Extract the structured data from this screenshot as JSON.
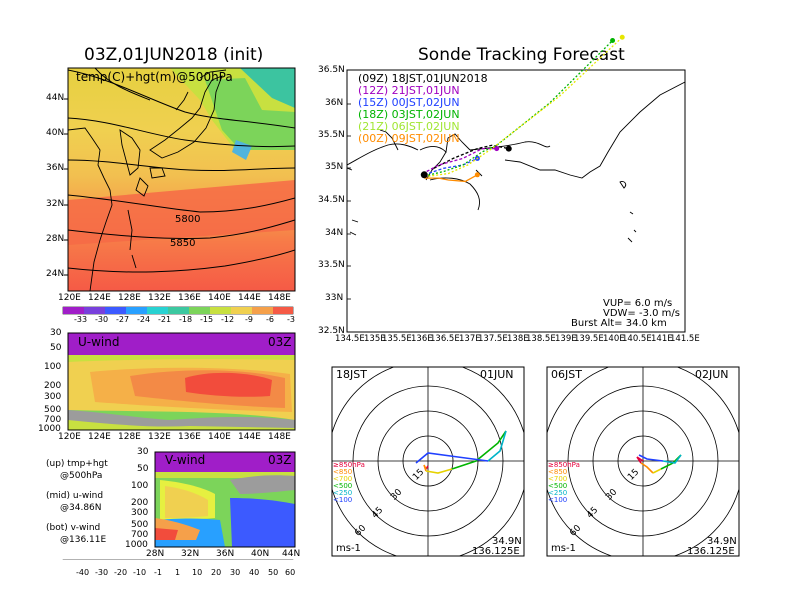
{
  "left_map": {
    "title": "03Z,01JUN2018 (init)",
    "label": "temp(C)+hgt(m)@500hPa",
    "contour_labels": [
      "5800",
      "5850"
    ],
    "lat_ticks": [
      "44N",
      "40N",
      "36N",
      "32N",
      "28N",
      "24N"
    ],
    "lon_ticks": [
      "120E",
      "124E",
      "128E",
      "132E",
      "136E",
      "140E",
      "144E",
      "148E"
    ],
    "colorbar_labels": [
      "-33",
      "-30",
      "-27",
      "-24",
      "-21",
      "-18",
      "-15",
      "-12",
      "-9",
      "-6",
      "-3"
    ]
  },
  "u_wind": {
    "label": "U-wind",
    "time": "03Z",
    "y_ticks": [
      "30",
      "50",
      "100",
      "200",
      "300",
      "500",
      "700",
      "1000"
    ],
    "x_ticks": [
      "120E",
      "124E",
      "128E",
      "132E",
      "136E",
      "140E",
      "144E",
      "148E"
    ]
  },
  "v_wind": {
    "label": "V-wind",
    "time": "03Z",
    "y_ticks": [
      "30",
      "50",
      "100",
      "200",
      "300",
      "500",
      "700",
      "1000"
    ],
    "x_ticks": [
      "28N",
      "32N",
      "36N",
      "40N",
      "44N"
    ]
  },
  "legend_notes": [
    [
      "(up) tmp+hgt",
      "@500hPa"
    ],
    [
      "(mid) u-wind",
      "@34.86N"
    ],
    [
      "(bot) v-wind",
      "@136.11E"
    ]
  ],
  "wind_colorbar_labels": [
    "-40",
    "-30",
    "-20",
    "-10",
    "-1",
    "1",
    "10",
    "20",
    "30",
    "40",
    "50",
    "60"
  ],
  "forecast": {
    "title": "Sonde Tracking Forecast",
    "lat_ticks": [
      "36.5N",
      "36N",
      "35.5N",
      "35N",
      "34.5N",
      "34N",
      "33.5N",
      "33N",
      "32.5N"
    ],
    "lon_ticks": [
      "134.5E",
      "135E",
      "135.5E",
      "136E",
      "136.5E",
      "137E",
      "137.5E",
      "138E",
      "138.5E",
      "139E",
      "139.5E",
      "140E",
      "140.5E",
      "141E",
      "141.5E"
    ],
    "legend": [
      {
        "text": "(09Z)  18JST,01JUN2018",
        "color": "#000000"
      },
      {
        "text": "(12Z)  21JST,01JUN",
        "color": "#a000c0"
      },
      {
        "text": "(15Z)  00JST,02JUN",
        "color": "#2040ff"
      },
      {
        "text": "(18Z)  03JST,02JUN",
        "color": "#00b400"
      },
      {
        "text": "(21Z)  06JST,02JUN",
        "color": "#a0e632"
      },
      {
        "text": "(00Z)  09JST,02JUN",
        "color": "#ff8c00"
      }
    ],
    "vup": "VUP=  6.0 m/s",
    "vdw": "VDW= -3.0 m/s",
    "burst": "Burst Alt= 34.0 km"
  },
  "hodographs": [
    {
      "time": "18JST",
      "date": "01JUN",
      "lat": "34.9N",
      "lon": "136.125E",
      "unit": "ms-1",
      "rings": [
        "15",
        "30",
        "45",
        "60"
      ],
      "levels": [
        "≥850hPa",
        "<850",
        "<700",
        "<500",
        "<250",
        "<100"
      ]
    },
    {
      "time": "06JST",
      "date": "02JUN",
      "lat": "34.9N",
      "lon": "136.125E",
      "unit": "ms-1",
      "rings": [
        "15",
        "30",
        "45",
        "60"
      ],
      "levels": [
        "≥850hPa",
        "<850",
        "<700",
        "<500",
        "<250",
        "<100"
      ]
    }
  ],
  "level_colors": [
    "#e6003c",
    "#ff8c00",
    "#e6d200",
    "#00b400",
    "#00b4c8",
    "#2040ff"
  ],
  "chart_data": [
    {
      "type": "heatmap",
      "title": "03Z,01JUN2018 (init)",
      "variable": "temp(C)+hgt(m)@500hPa",
      "xlim": [
        120,
        150
      ],
      "ylim": [
        22,
        48
      ],
      "color_levels": [
        -33,
        -30,
        -27,
        -24,
        -21,
        -18,
        -15,
        -12,
        -9,
        -6,
        -3
      ],
      "contours": [
        {
          "label": "5800",
          "lat_at_136E": 31.5
        },
        {
          "label": "5850",
          "lat_at_136E": 28.5
        }
      ]
    },
    {
      "type": "line",
      "title": "Sonde Tracking Forecast",
      "xlim": [
        134.5,
        141.5
      ],
      "ylim": [
        32.5,
        36.5
      ],
      "series": [
        {
          "name": "(09Z)  18JST,01JUN2018",
          "points": [
            [
              136.3,
              35.0
            ],
            [
              136.7,
              35.15
            ],
            [
              137.2,
              35.3
            ],
            [
              137.5,
              35.35
            ],
            [
              137.85,
              35.3
            ]
          ]
        },
        {
          "name": "(12Z)  21JST,01JUN",
          "points": [
            [
              136.15,
              34.95
            ],
            [
              136.4,
              35.05
            ],
            [
              136.9,
              35.15
            ],
            [
              137.3,
              35.3
            ],
            [
              137.6,
              35.3
            ]
          ]
        },
        {
          "name": "(15Z)  00JST,02JUN",
          "points": [
            [
              136.1,
              34.9
            ],
            [
              136.5,
              35.0
            ],
            [
              136.9,
              35.05
            ],
            [
              137.2,
              35.15
            ]
          ]
        },
        {
          "name": "(18Z)  03JST,02JUN",
          "points": [
            [
              136.1,
              34.88
            ],
            [
              136.5,
              34.95
            ],
            [
              136.9,
              35.05
            ],
            [
              137.3,
              35.25
            ],
            [
              137.6,
              35.35
            ],
            [
              138.7,
              36.0
            ],
            [
              140.0,
              36.95
            ]
          ]
        },
        {
          "name": "(21Z)  06JST,02JUN",
          "points": [
            [
              136.1,
              34.87
            ],
            [
              136.6,
              34.92
            ],
            [
              137.0,
              35.05
            ],
            [
              137.5,
              35.3
            ],
            [
              138.9,
              36.1
            ],
            [
              140.2,
              37.0
            ]
          ]
        },
        {
          "name": "(00Z)  09JST,02JUN",
          "points": [
            [
              136.1,
              34.85
            ],
            [
              136.4,
              34.85
            ],
            [
              136.6,
              34.82
            ],
            [
              136.95,
              34.8
            ],
            [
              137.2,
              34.9
            ]
          ]
        }
      ]
    }
  ]
}
